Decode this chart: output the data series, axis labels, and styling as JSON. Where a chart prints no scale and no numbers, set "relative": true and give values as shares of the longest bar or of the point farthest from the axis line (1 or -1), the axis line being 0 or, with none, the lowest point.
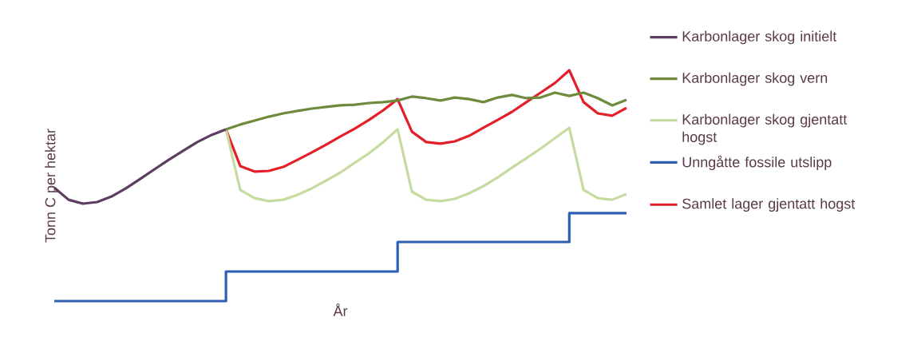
{
  "chart_data": {
    "type": "line",
    "relative": true,
    "xlabel": "År",
    "ylabel": "Tonn C per hektar",
    "legend": "right",
    "categories": [
      null,
      null,
      null,
      null,
      null,
      null,
      null,
      null,
      null,
      null,
      null,
      null,
      null,
      null,
      null,
      null,
      null,
      null,
      null,
      null,
      null,
      null,
      null,
      null,
      null,
      null,
      null,
      null,
      null,
      null,
      null,
      null,
      null,
      null,
      null,
      null,
      null,
      null,
      null,
      null,
      null
    ],
    "series": [
      {
        "name": "Karbonlager skog initielt",
        "color": "#5b3f5e",
        "values": [
          0.491,
          0.439,
          0.422,
          0.429,
          0.453,
          0.488,
          0.529,
          0.571,
          0.612,
          0.651,
          0.689,
          0.72,
          0.744,
          null,
          null,
          null,
          null,
          null,
          null,
          null,
          null,
          null,
          null,
          null,
          null,
          null,
          null,
          null,
          null,
          null,
          null,
          null,
          null,
          null,
          null,
          null,
          null,
          null,
          null,
          null,
          null
        ]
      },
      {
        "name": "Karbonlager skog vern",
        "color": "#6e8a3c",
        "values": [
          null,
          null,
          null,
          null,
          null,
          null,
          null,
          null,
          null,
          null,
          null,
          null,
          0.744,
          0.765,
          0.782,
          0.799,
          0.813,
          0.824,
          0.834,
          0.841,
          0.848,
          0.851,
          0.858,
          0.862,
          0.869,
          0.886,
          0.879,
          0.869,
          0.882,
          0.875,
          0.862,
          0.882,
          0.893,
          0.879,
          0.882,
          0.903,
          0.889,
          0.903,
          0.879,
          0.848,
          0.872
        ]
      },
      {
        "name": "Karbonlager skog gjentatt hogst",
        "color": "#c5dba0",
        "values": [
          null,
          null,
          null,
          null,
          null,
          null,
          null,
          null,
          null,
          null,
          null,
          null,
          0.744,
          0.481,
          0.446,
          0.433,
          0.439,
          0.46,
          0.488,
          0.522,
          0.557,
          0.599,
          0.64,
          0.689,
          0.744,
          0.474,
          0.439,
          0.433,
          0.443,
          0.467,
          0.498,
          0.536,
          0.578,
          0.619,
          0.661,
          0.706,
          0.751,
          0.481,
          0.446,
          0.439,
          0.464
        ]
      },
      {
        "name": "Unngåtte fossile utslipp",
        "color": "#2e5fb5",
        "type": "step",
        "values": [
          0,
          0,
          0,
          0,
          0,
          0,
          0,
          0,
          0,
          0,
          0,
          0,
          0.128,
          0.128,
          0.128,
          0.128,
          0.128,
          0.128,
          0.128,
          0.128,
          0.128,
          0.128,
          0.128,
          0.128,
          0.256,
          0.256,
          0.256,
          0.256,
          0.256,
          0.256,
          0.256,
          0.256,
          0.256,
          0.256,
          0.256,
          0.256,
          0.381,
          0.381,
          0.381,
          0.381,
          0.381
        ]
      },
      {
        "name": "Samlet lager gjentatt hogst",
        "color": "#e3202a",
        "values": [
          null,
          null,
          null,
          null,
          null,
          null,
          null,
          null,
          null,
          null,
          null,
          null,
          0.744,
          0.585,
          0.561,
          0.564,
          0.581,
          0.612,
          0.644,
          0.678,
          0.713,
          0.747,
          0.785,
          0.827,
          0.875,
          0.734,
          0.689,
          0.682,
          0.692,
          0.716,
          0.751,
          0.785,
          0.82,
          0.862,
          0.903,
          0.945,
          1.0,
          0.862,
          0.813,
          0.803,
          0.837
        ]
      }
    ]
  }
}
